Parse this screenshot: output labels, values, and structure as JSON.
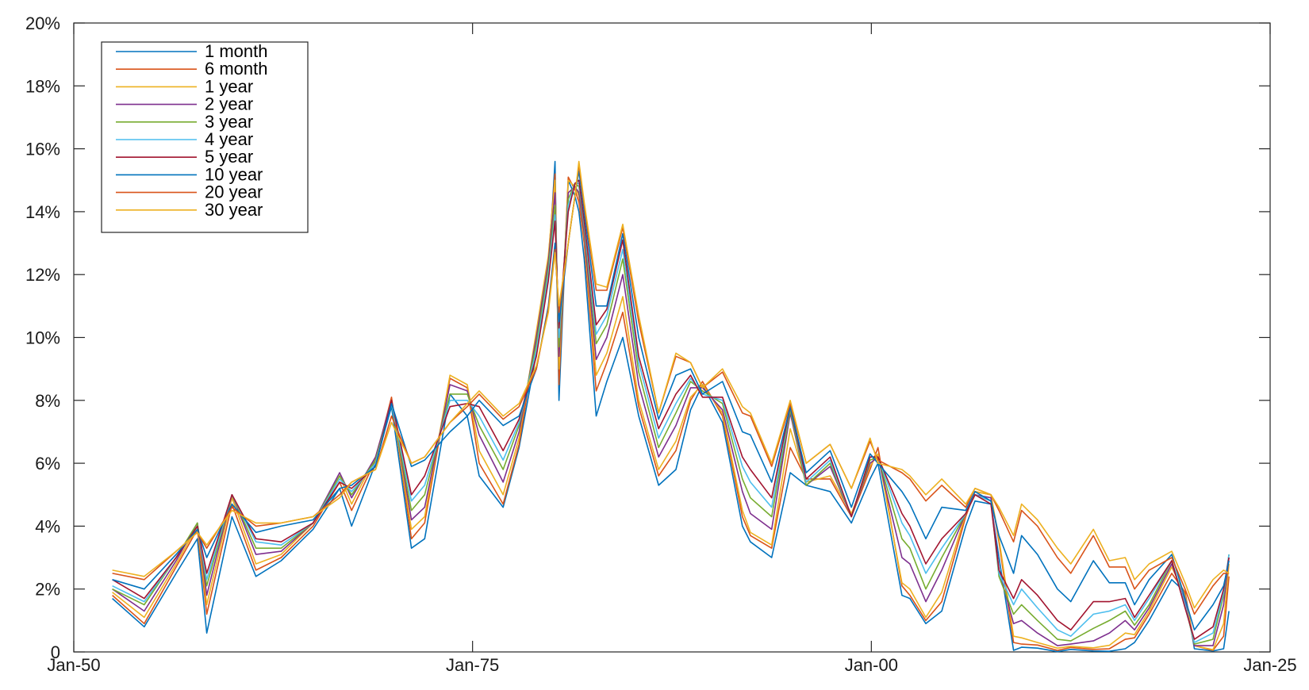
{
  "chart_data": {
    "type": "line",
    "title": "",
    "xlabel": "",
    "ylabel": "",
    "xlim": [
      "1950-01",
      "2025-01"
    ],
    "ylim": [
      0,
      20
    ],
    "grid": false,
    "legend_position": "top-left",
    "y_ticks": [
      {
        "value": 0,
        "label": "0"
      },
      {
        "value": 2,
        "label": "2%"
      },
      {
        "value": 4,
        "label": "4%"
      },
      {
        "value": 6,
        "label": "6%"
      },
      {
        "value": 8,
        "label": "8%"
      },
      {
        "value": 10,
        "label": "10%"
      },
      {
        "value": 12,
        "label": "12%"
      },
      {
        "value": 14,
        "label": "14%"
      },
      {
        "value": 16,
        "label": "16%"
      },
      {
        "value": 18,
        "label": "18%"
      },
      {
        "value": 20,
        "label": "20%"
      }
    ],
    "x_ticks": [
      {
        "value": "1950-01",
        "label": "Jan-50"
      },
      {
        "value": "1975-01",
        "label": "Jan-75"
      },
      {
        "value": "2000-01",
        "label": "Jan-00"
      },
      {
        "value": "2025-01",
        "label": "Jan-25"
      }
    ],
    "x": [
      "1952-06",
      "1954-06",
      "1956-06",
      "1957-10",
      "1958-05",
      "1959-12",
      "1961-06",
      "1963-01",
      "1965-01",
      "1966-09",
      "1967-06",
      "1968-12",
      "1969-12",
      "1971-03",
      "1972-01",
      "1973-08",
      "1974-09",
      "1975-06",
      "1976-12",
      "1977-12",
      "1979-01",
      "1979-10",
      "1980-03",
      "1980-06",
      "1981-01",
      "1981-06",
      "1981-09",
      "1982-01",
      "1982-10",
      "1983-06",
      "1984-06",
      "1985-06",
      "1986-09",
      "1987-10",
      "1988-09",
      "1989-06",
      "1990-09",
      "1991-12",
      "1992-06",
      "1993-10",
      "1994-12",
      "1995-12",
      "1997-06",
      "1998-10",
      "1999-12",
      "2000-06",
      "2001-12",
      "2002-06",
      "2003-06",
      "2004-06",
      "2005-12",
      "2006-07",
      "2007-07",
      "2008-01",
      "2008-12",
      "2009-06",
      "2010-06",
      "2011-09",
      "2012-07",
      "2013-12",
      "2014-12",
      "2015-12",
      "2016-07",
      "2017-06",
      "2018-11",
      "2019-09",
      "2020-04",
      "2021-06",
      "2022-02",
      "2022-06"
    ],
    "series": [
      {
        "name": "1 month",
        "color": "#0072BD",
        "values": [
          1.7,
          0.8,
          2.5,
          3.6,
          0.6,
          4.3,
          2.4,
          2.9,
          3.9,
          5.2,
          4.0,
          6.0,
          7.8,
          3.3,
          3.6,
          8.2,
          7.5,
          5.6,
          4.6,
          6.5,
          9.5,
          12.0,
          15.6,
          8.0,
          15.0,
          14.5,
          14.0,
          12.5,
          7.5,
          8.6,
          10.0,
          7.5,
          5.3,
          5.8,
          7.7,
          8.5,
          7.3,
          4.0,
          3.5,
          3.0,
          5.7,
          5.3,
          5.1,
          4.1,
          5.5,
          6.0,
          1.8,
          1.7,
          0.9,
          1.3,
          4.0,
          4.8,
          4.7,
          3.0,
          0.05,
          0.15,
          0.12,
          0.01,
          0.08,
          0.03,
          0.02,
          0.1,
          0.3,
          1.0,
          2.3,
          1.9,
          0.1,
          0.03,
          0.1,
          1.3
        ]
      },
      {
        "name": "6 month",
        "color": "#D95319",
        "values": [
          1.8,
          0.9,
          2.7,
          3.9,
          1.2,
          4.7,
          2.6,
          3.0,
          4.0,
          5.4,
          4.5,
          6.1,
          8.1,
          3.6,
          4.1,
          8.7,
          8.4,
          6.0,
          4.7,
          6.6,
          10.0,
          12.5,
          15.2,
          8.5,
          15.1,
          14.7,
          14.3,
          13.0,
          8.3,
          9.2,
          10.8,
          7.8,
          5.6,
          6.4,
          8.0,
          8.6,
          7.5,
          4.3,
          3.7,
          3.3,
          6.5,
          5.5,
          5.5,
          4.3,
          5.8,
          6.5,
          2.1,
          1.8,
          1.0,
          1.6,
          4.3,
          5.1,
          5.0,
          3.5,
          0.3,
          0.25,
          0.22,
          0.05,
          0.14,
          0.08,
          0.1,
          0.4,
          0.45,
          1.2,
          2.5,
          1.9,
          0.2,
          0.05,
          0.5,
          2.4
        ]
      },
      {
        "name": "1 year",
        "color": "#EDB120",
        "values": [
          1.9,
          1.1,
          2.8,
          4.0,
          1.5,
          4.9,
          2.8,
          3.1,
          4.1,
          5.6,
          4.7,
          6.2,
          8.0,
          3.9,
          4.3,
          8.8,
          8.5,
          6.4,
          5.0,
          6.8,
          10.2,
          12.6,
          15.0,
          9.0,
          15.0,
          14.8,
          14.5,
          13.2,
          8.8,
          9.5,
          11.3,
          8.0,
          5.8,
          6.7,
          8.1,
          8.5,
          7.6,
          4.5,
          3.8,
          3.4,
          7.1,
          5.4,
          5.6,
          4.4,
          5.9,
          6.3,
          2.2,
          2.0,
          1.1,
          1.9,
          4.4,
          5.1,
          5.0,
          3.6,
          0.5,
          0.45,
          0.3,
          0.12,
          0.18,
          0.13,
          0.21,
          0.6,
          0.55,
          1.3,
          2.7,
          1.8,
          0.2,
          0.07,
          0.9,
          2.8
        ]
      },
      {
        "name": "2 year",
        "color": "#7E2F8E",
        "values": [
          2.0,
          1.3,
          2.9,
          4.1,
          1.8,
          5.0,
          3.1,
          3.2,
          4.1,
          5.7,
          4.9,
          6.2,
          8.0,
          4.2,
          4.6,
          8.5,
          8.3,
          6.9,
          5.4,
          7.0,
          10.0,
          12.4,
          14.6,
          9.4,
          14.6,
          14.8,
          14.6,
          13.3,
          9.3,
          10.0,
          12.0,
          8.5,
          6.2,
          7.2,
          8.4,
          8.4,
          7.7,
          5.1,
          4.4,
          3.9,
          7.6,
          5.3,
          5.9,
          4.3,
          6.0,
          6.2,
          3.0,
          2.8,
          1.6,
          2.6,
          4.4,
          5.0,
          4.9,
          2.6,
          0.9,
          1.0,
          0.6,
          0.2,
          0.25,
          0.35,
          0.6,
          1.0,
          0.7,
          1.4,
          2.8,
          1.6,
          0.2,
          0.2,
          1.5,
          3.0
        ]
      },
      {
        "name": "3 year",
        "color": "#77AC30",
        "values": [
          2.0,
          1.5,
          3.0,
          4.1,
          2.1,
          5.0,
          3.3,
          3.3,
          4.1,
          5.6,
          5.0,
          6.1,
          7.9,
          4.5,
          5.0,
          8.2,
          8.2,
          7.2,
          5.8,
          7.2,
          9.8,
          12.2,
          14.2,
          9.7,
          14.4,
          14.9,
          14.8,
          13.5,
          9.8,
          10.4,
          12.5,
          8.9,
          6.5,
          7.6,
          8.6,
          8.3,
          7.9,
          5.5,
          4.9,
          4.3,
          7.7,
          5.3,
          6.0,
          4.3,
          6.1,
          6.2,
          3.6,
          3.3,
          2.0,
          3.0,
          4.4,
          5.0,
          4.8,
          2.4,
          1.2,
          1.5,
          1.0,
          0.4,
          0.35,
          0.75,
          1.0,
          1.3,
          0.85,
          1.5,
          2.9,
          1.5,
          0.25,
          0.4,
          1.8,
          3.1
        ]
      },
      {
        "name": "4 year",
        "color": "#4DBEEE",
        "values": [
          2.1,
          1.6,
          3.0,
          4.0,
          2.3,
          5.0,
          3.5,
          3.4,
          4.1,
          5.5,
          5.1,
          6.0,
          7.9,
          4.8,
          5.3,
          8.0,
          8.0,
          7.5,
          6.1,
          7.3,
          9.6,
          12.0,
          13.9,
          10.0,
          14.2,
          14.9,
          14.9,
          13.6,
          10.1,
          10.7,
          12.8,
          9.2,
          6.8,
          7.9,
          8.7,
          8.2,
          8.0,
          5.9,
          5.4,
          4.6,
          7.8,
          5.4,
          6.1,
          4.3,
          6.2,
          6.2,
          4.1,
          3.7,
          2.5,
          3.3,
          4.4,
          5.0,
          4.8,
          2.5,
          1.5,
          2.0,
          1.4,
          0.7,
          0.5,
          1.2,
          1.3,
          1.5,
          1.0,
          1.7,
          2.9,
          1.5,
          0.3,
          0.6,
          1.9,
          3.1
        ]
      },
      {
        "name": "5 year",
        "color": "#A2142F",
        "values": [
          2.3,
          1.7,
          3.0,
          4.0,
          2.5,
          5.0,
          3.6,
          3.5,
          4.1,
          5.4,
          5.2,
          5.9,
          8.0,
          5.0,
          5.6,
          7.8,
          7.9,
          7.8,
          6.4,
          7.4,
          9.4,
          11.8,
          13.7,
          10.3,
          14.0,
          14.9,
          15.0,
          13.7,
          10.4,
          10.9,
          13.1,
          9.4,
          7.1,
          8.2,
          8.8,
          8.1,
          8.1,
          6.2,
          5.8,
          4.9,
          7.8,
          5.5,
          6.2,
          4.3,
          6.2,
          6.2,
          4.4,
          4.0,
          2.8,
          3.6,
          4.4,
          5.0,
          4.7,
          2.6,
          1.7,
          2.3,
          1.8,
          1.0,
          0.7,
          1.6,
          1.6,
          1.7,
          1.1,
          1.8,
          2.9,
          1.4,
          0.4,
          0.8,
          2.0,
          3.0
        ]
      },
      {
        "name": "10 year",
        "color": "#0072BD",
        "values": [
          2.3,
          2.0,
          3.1,
          3.9,
          3.0,
          4.7,
          3.8,
          4.0,
          4.2,
          5.2,
          5.3,
          5.9,
          7.9,
          5.9,
          6.1,
          7.0,
          7.5,
          8.0,
          7.2,
          7.5,
          9.0,
          11.0,
          13.0,
          10.5,
          13.0,
          14.5,
          15.3,
          14.0,
          11.0,
          11.0,
          13.3,
          10.0,
          7.4,
          8.8,
          9.0,
          8.2,
          8.6,
          7.0,
          6.9,
          5.4,
          7.8,
          5.7,
          6.4,
          4.6,
          6.3,
          6.0,
          5.1,
          4.7,
          3.6,
          4.6,
          4.5,
          5.1,
          4.8,
          3.7,
          2.5,
          3.7,
          3.1,
          2.0,
          1.6,
          2.9,
          2.2,
          2.2,
          1.5,
          2.3,
          3.1,
          1.7,
          0.7,
          1.5,
          2.1,
          2.9
        ]
      },
      {
        "name": "20 year",
        "color": "#D95319",
        "values": [
          2.5,
          2.3,
          3.2,
          3.8,
          3.3,
          4.6,
          4.0,
          4.1,
          4.3,
          5.0,
          5.4,
          5.8,
          7.5,
          6.0,
          6.2,
          7.3,
          7.8,
          8.2,
          7.4,
          7.8,
          9.0,
          10.9,
          12.8,
          10.8,
          13.0,
          14.5,
          15.5,
          14.2,
          11.5,
          11.5,
          13.5,
          10.5,
          7.6,
          9.4,
          9.2,
          8.4,
          8.9,
          7.6,
          7.5,
          5.9,
          7.9,
          6.0,
          6.6,
          5.2,
          6.7,
          6.1,
          5.7,
          5.5,
          4.8,
          5.3,
          4.6,
          5.2,
          5.0,
          4.5,
          3.5,
          4.5,
          4.0,
          3.0,
          2.5,
          3.7,
          2.7,
          2.7,
          2.0,
          2.6,
          3.0,
          2.0,
          1.2,
          2.1,
          2.5,
          2.5
        ]
      },
      {
        "name": "30 year",
        "color": "#EDB120",
        "values": [
          2.6,
          2.4,
          3.2,
          3.8,
          3.4,
          4.5,
          4.1,
          4.1,
          4.3,
          4.9,
          5.4,
          5.8,
          7.3,
          6.0,
          6.2,
          7.3,
          7.9,
          8.3,
          7.5,
          7.9,
          9.1,
          10.8,
          12.7,
          11.0,
          13.0,
          14.5,
          15.6,
          14.3,
          11.7,
          11.6,
          13.6,
          10.7,
          7.6,
          9.5,
          9.2,
          8.4,
          9.0,
          7.8,
          7.6,
          6.0,
          8.0,
          6.0,
          6.6,
          5.2,
          6.8,
          6.0,
          5.8,
          5.6,
          5.0,
          5.5,
          4.7,
          5.2,
          5.0,
          4.6,
          3.7,
          4.7,
          4.2,
          3.3,
          2.8,
          3.9,
          2.9,
          3.0,
          2.3,
          2.8,
          3.2,
          2.2,
          1.4,
          2.3,
          2.6,
          2.5
        ]
      }
    ]
  }
}
